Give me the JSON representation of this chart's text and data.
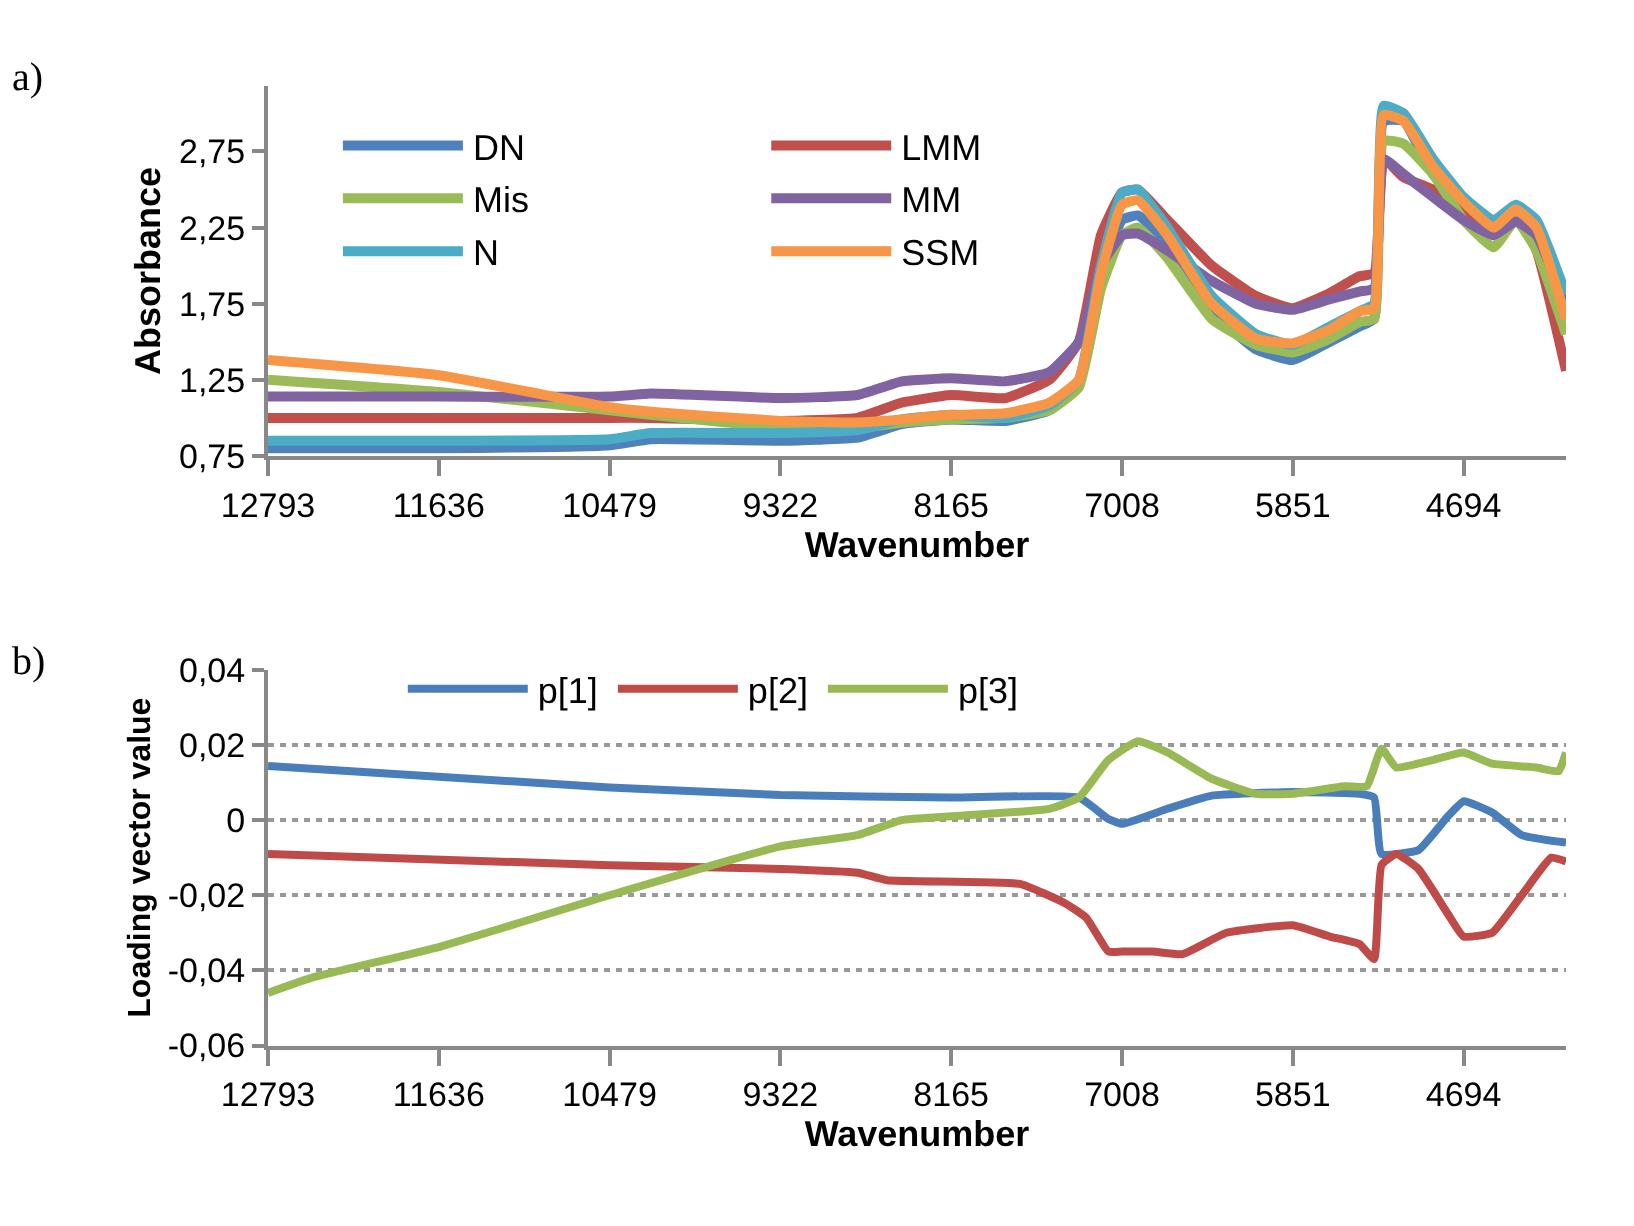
{
  "chart_data": [
    {
      "type": "line",
      "annotations": [
        "a)"
      ],
      "xlabel": "Wavenumber",
      "ylabel": "Absorbance",
      "xlim": [
        12793,
        4000
      ],
      "xticks": [
        12793,
        11636,
        10479,
        9322,
        8165,
        7008,
        5851,
        4694
      ],
      "ylim": [
        0.75,
        3.18
      ],
      "yticks": [
        {
          "value": 0.75,
          "label": "0,75"
        },
        {
          "value": 1.25,
          "label": "1,25"
        },
        {
          "value": 1.75,
          "label": "1,75"
        },
        {
          "value": 2.25,
          "label": "2,25"
        },
        {
          "value": 2.75,
          "label": "2,75"
        }
      ],
      "grid": false,
      "legend": "top left",
      "x": [
        12793,
        11636,
        10479,
        10200,
        9322,
        8800,
        8500,
        8165,
        7800,
        7500,
        7300,
        7150,
        7008,
        6900,
        6700,
        6400,
        6100,
        5851,
        5600,
        5400,
        5300,
        5235,
        5100,
        4900,
        4694,
        4490,
        4340,
        4200,
        4000
      ],
      "series": [
        {
          "name": "DN",
          "color": "#4f81bd",
          "values": [
            0.8,
            0.8,
            0.82,
            0.86,
            0.85,
            0.87,
            0.96,
            0.99,
            0.98,
            1.05,
            1.22,
            1.9,
            2.3,
            2.33,
            2.15,
            1.7,
            1.45,
            1.38,
            1.5,
            1.6,
            1.65,
            2.95,
            2.95,
            2.6,
            2.4,
            2.25,
            2.38,
            2.25,
            1.75
          ]
        },
        {
          "name": "LMM",
          "color": "#c0504d",
          "values": [
            1.0,
            1.0,
            1.0,
            1.0,
            0.98,
            1.0,
            1.1,
            1.15,
            1.13,
            1.25,
            1.5,
            2.2,
            2.48,
            2.5,
            2.3,
            2.0,
            1.8,
            1.72,
            1.82,
            1.93,
            1.95,
            2.7,
            2.58,
            2.5,
            2.35,
            2.2,
            2.33,
            2.1,
            1.31
          ]
        },
        {
          "name": "Mis",
          "color": "#9bbb59",
          "values": [
            1.25,
            1.17,
            1.05,
            1.02,
            0.94,
            0.93,
            0.97,
            0.99,
            1.0,
            1.05,
            1.2,
            1.85,
            2.2,
            2.25,
            2.05,
            1.65,
            1.48,
            1.43,
            1.52,
            1.63,
            1.65,
            2.82,
            2.8,
            2.6,
            2.3,
            2.12,
            2.3,
            2.1,
            1.55
          ]
        },
        {
          "name": "MM",
          "color": "#8064a2",
          "values": [
            1.14,
            1.14,
            1.14,
            1.16,
            1.13,
            1.15,
            1.24,
            1.26,
            1.24,
            1.3,
            1.5,
            2.0,
            2.2,
            2.21,
            2.1,
            1.9,
            1.75,
            1.71,
            1.78,
            1.83,
            1.85,
            2.7,
            2.6,
            2.45,
            2.3,
            2.2,
            2.29,
            2.2,
            1.73
          ]
        },
        {
          "name": "N",
          "color": "#4bacc6",
          "values": [
            0.85,
            0.85,
            0.86,
            0.9,
            0.9,
            0.92,
            0.99,
            1.02,
            1.0,
            1.08,
            1.25,
            2.0,
            2.48,
            2.5,
            2.25,
            1.8,
            1.55,
            1.48,
            1.6,
            1.7,
            1.75,
            3.05,
            3.0,
            2.7,
            2.45,
            2.3,
            2.4,
            2.3,
            1.81
          ]
        },
        {
          "name": "SSM",
          "color": "#f79646",
          "values": [
            1.38,
            1.28,
            1.07,
            1.04,
            0.98,
            0.97,
            0.99,
            1.02,
            1.03,
            1.1,
            1.25,
            1.95,
            2.4,
            2.43,
            2.2,
            1.75,
            1.52,
            1.49,
            1.58,
            1.7,
            1.72,
            2.99,
            2.95,
            2.65,
            2.42,
            2.25,
            2.37,
            2.25,
            1.65
          ]
        }
      ]
    },
    {
      "type": "line",
      "annotations": [
        "b)"
      ],
      "xlabel": "Wavenumber",
      "ylabel": "Loading vector value",
      "xlim": [
        12793,
        4000
      ],
      "xticks": [
        12793,
        11636,
        10479,
        9322,
        8165,
        7008,
        5851,
        4694
      ],
      "ylim": [
        -0.06,
        0.04
      ],
      "yticks": [
        {
          "value": -0.06,
          "label": "-0,06"
        },
        {
          "value": -0.04,
          "label": "-0,04"
        },
        {
          "value": -0.02,
          "label": "-0,02"
        },
        0,
        {
          "value": 0.02,
          "label": "0,02"
        },
        {
          "value": 0.04,
          "label": "0,04"
        }
      ],
      "grid": "y",
      "legend": "top left",
      "series": [
        {
          "name": "p[1]",
          "color": "#4a7ebb",
          "x": [
            12793,
            10479,
            9322,
            8165,
            7300,
            7100,
            7008,
            6700,
            6400,
            5851,
            5400,
            5300,
            5250,
            5000,
            4800,
            4694,
            4500,
            4300,
            4000
          ],
          "values": [
            0.0144,
            0.0087,
            0.0067,
            0.006,
            0.006,
            0.0003,
            -0.001,
            0.003,
            0.0065,
            0.0075,
            0.007,
            0.006,
            -0.009,
            -0.008,
            0.001,
            0.005,
            0.002,
            -0.004,
            -0.006
          ]
        },
        {
          "name": "p[2]",
          "color": "#be4b48",
          "x": [
            12793,
            10479,
            9322,
            8800,
            8600,
            7700,
            7400,
            7250,
            7100,
            7008,
            6800,
            6600,
            6300,
            5851,
            5600,
            5400,
            5300,
            5250,
            5150,
            5000,
            4800,
            4694,
            4500,
            4300,
            4100,
            4000
          ],
          "values": [
            -0.009,
            -0.012,
            -0.013,
            -0.014,
            -0.016,
            -0.017,
            -0.022,
            -0.026,
            -0.035,
            -0.035,
            -0.035,
            -0.0357,
            -0.03,
            -0.028,
            -0.031,
            -0.033,
            -0.037,
            -0.012,
            -0.009,
            -0.013,
            -0.025,
            -0.031,
            -0.03,
            -0.02,
            -0.01,
            -0.011
          ]
        },
        {
          "name": "p[3]",
          "color": "#98b954",
          "x": [
            12793,
            12500,
            11636,
            10479,
            9322,
            8800,
            8500,
            8165,
            7500,
            7300,
            7100,
            6900,
            6700,
            6400,
            6100,
            5851,
            5500,
            5350,
            5250,
            5150,
            4900,
            4694,
            4500,
            4200,
            4050,
            4000
          ],
          "values": [
            -0.046,
            -0.042,
            -0.0338,
            -0.02,
            -0.007,
            -0.004,
            0,
            0.001,
            0.003,
            0.006,
            0.016,
            0.021,
            0.018,
            0.011,
            0.007,
            0.007,
            0.009,
            0.009,
            0.019,
            0.014,
            0.016,
            0.018,
            0.015,
            0.014,
            0.013,
            0.018
          ]
        }
      ]
    }
  ]
}
